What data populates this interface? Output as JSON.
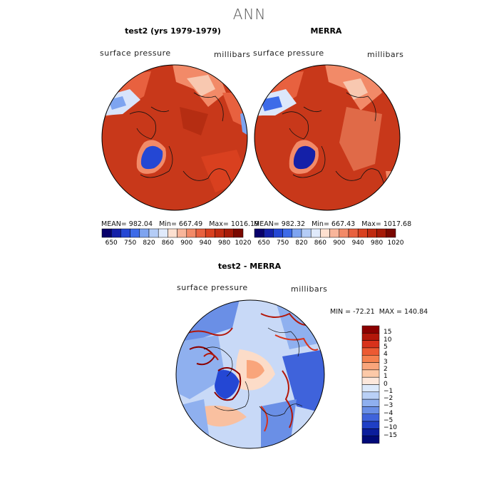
{
  "title": "ANN",
  "panels": [
    {
      "title": "test2 (yrs 1979-1979)",
      "field": "surface pressure",
      "units": "millibars",
      "stats": {
        "mean": "982.04",
        "min": "667.49",
        "max": "1016.19"
      },
      "stats_text": "MEAN= 982.04   Min= 667.49   Max= 1016.19"
    },
    {
      "title": "MERRA",
      "field": "surface pressure",
      "units": "millibars",
      "stats": {
        "mean": "982.32",
        "min": "667.43",
        "max": "1017.68"
      },
      "stats_text": "MEAN= 982.32   Min= 667.43   Max= 1017.68"
    }
  ],
  "colorbar_top": {
    "labels": [
      "650",
      "750",
      "820",
      "860",
      "900",
      "940",
      "980",
      "1020"
    ],
    "colors": [
      "#08006b",
      "#1420a8",
      "#2447d4",
      "#3d6be8",
      "#7ea4f0",
      "#b4ccf6",
      "#e0eafb",
      "#fde0d0",
      "#f8b59a",
      "#f28a68",
      "#e8613f",
      "#d9401f",
      "#c02a10",
      "#a61a07",
      "#7a0800"
    ]
  },
  "diff_panel": {
    "title": "test2 - MERRA",
    "field": "surface pressure",
    "units": "millibars",
    "stats": {
      "min": "-72.21",
      "max": "140.84"
    },
    "stats_text": "MIN = -72.21  MAX = 140.84"
  },
  "colorbar_diff": {
    "labels": [
      "15",
      "10",
      "5",
      "4",
      "3",
      "2",
      "1",
      "0",
      "−1",
      "−2",
      "−3",
      "−4",
      "−5",
      "−10",
      "−15"
    ],
    "colors": [
      "#8b0000",
      "#b3170a",
      "#d8321b",
      "#ec5a32",
      "#f5804e",
      "#f9a57b",
      "#fcc9a8",
      "#fde8dc",
      "#dce9fb",
      "#b9d0f6",
      "#8fb0ef",
      "#6a8fe6",
      "#3f63db",
      "#1f3fc5",
      "#0b1e9c",
      "#000a78"
    ]
  }
}
